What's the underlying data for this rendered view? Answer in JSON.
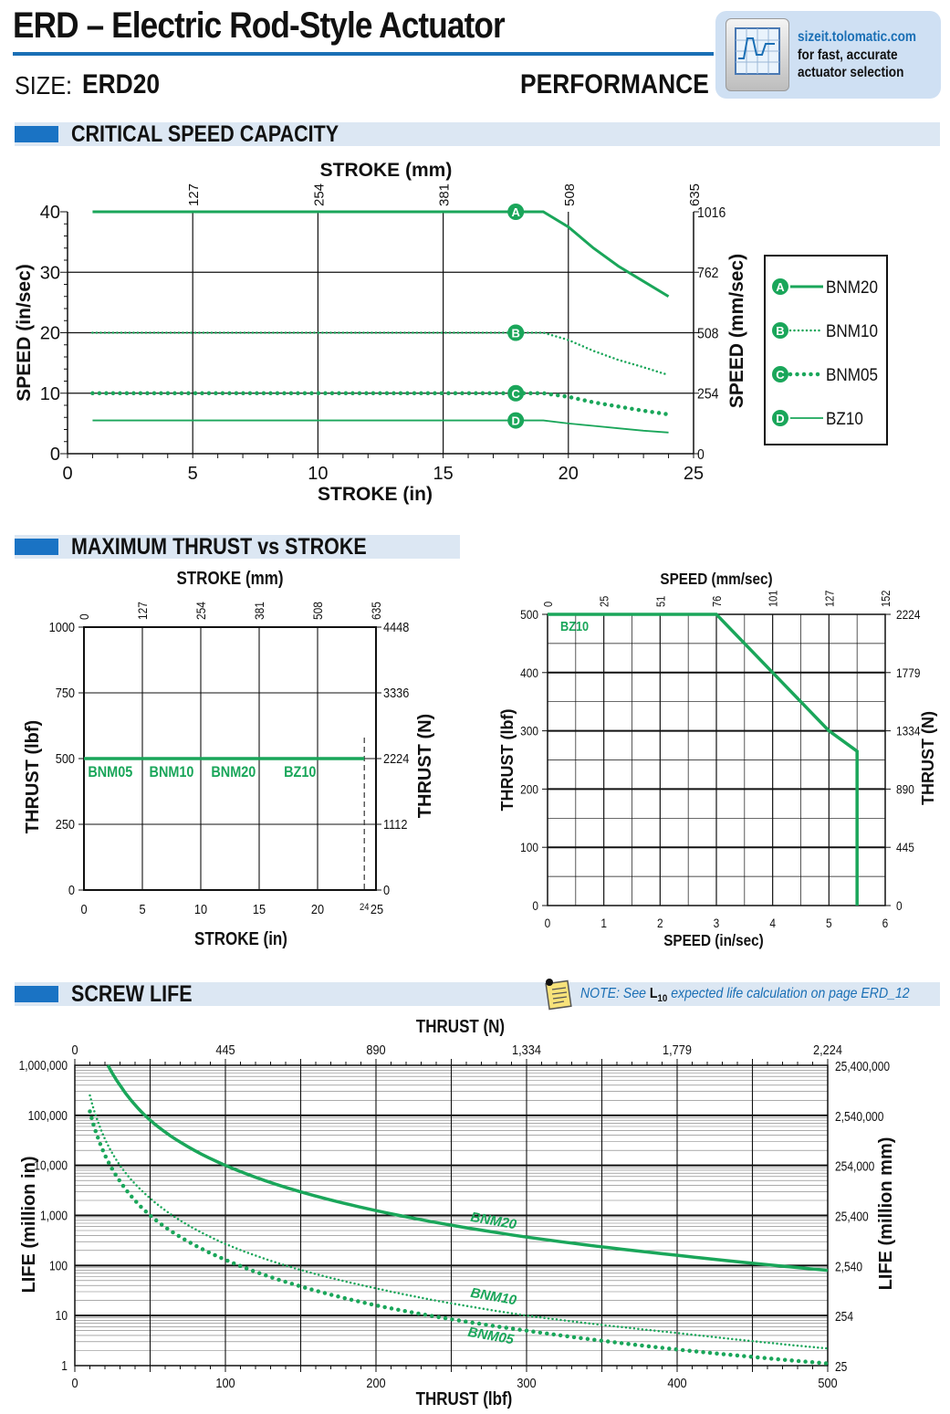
{
  "header": {
    "title": "ERD – Electric Rod-Style Actuator",
    "size_label": "SIZE:",
    "size_value": "ERD20",
    "section": "PERFORMANCE",
    "promo": {
      "url": "sizeit.tolomatic.com",
      "line1": "for fast, accurate",
      "line2": "actuator selection",
      "icon": "sizing-software-icon"
    }
  },
  "sections": {
    "critical": "CRITICAL SPEED CAPACITY",
    "thrust": "MAXIMUM THRUST vs STROKE",
    "life": "SCREW LIFE",
    "life_note_prefix": "NOTE: See ",
    "life_note_bold": "L",
    "life_note_sub": "10",
    "life_note_suffix": " expected life calculation on page ERD_12",
    "note_icon": "note-pad-icon"
  },
  "colors": {
    "accent": "#1a73c4",
    "series": "#1aa65a",
    "section_bg": "#dce7f3"
  },
  "chart_data": [
    {
      "id": "critical",
      "type": "line",
      "title": "",
      "xlabel": "STROKE (in)",
      "xlabel_top": "STROKE (mm)",
      "ylabel": "SPEED (in/sec)",
      "ylabel_right": "SPEED (mm/sec)",
      "xlim": [
        0,
        25
      ],
      "ylim": [
        0,
        40
      ],
      "x_ticks": [
        "0",
        "5",
        "10",
        "15",
        "20",
        "25"
      ],
      "x_top_ticks": [
        "127",
        "254",
        "381",
        "508",
        "635"
      ],
      "y_ticks": [
        "0",
        "10",
        "20",
        "30",
        "40"
      ],
      "y_right_ticks": [
        "0",
        "254",
        "508",
        "762",
        "1016"
      ],
      "grid": true,
      "legend": "right",
      "series": [
        {
          "name": "BNM20",
          "marker": "A",
          "style": "solid",
          "x": [
            1,
            19,
            20,
            21,
            22,
            23,
            24
          ],
          "y": [
            40,
            40,
            37.5,
            34,
            31,
            28.5,
            26
          ]
        },
        {
          "name": "BNM10",
          "marker": "B",
          "style": "dotted",
          "x": [
            1,
            19,
            20,
            21,
            22,
            23,
            24
          ],
          "y": [
            20,
            20,
            18.8,
            17,
            15.5,
            14.3,
            13
          ]
        },
        {
          "name": "BNM05",
          "marker": "C",
          "style": "dots",
          "x": [
            1,
            19,
            20,
            21,
            22,
            23,
            24
          ],
          "y": [
            10,
            10,
            9.4,
            8.5,
            7.8,
            7.1,
            6.5
          ]
        },
        {
          "name": "BZ10",
          "marker": "D",
          "style": "thin",
          "x": [
            1,
            19,
            20,
            21,
            22,
            23,
            24
          ],
          "y": [
            5.5,
            5.5,
            5,
            4.6,
            4.2,
            3.8,
            3.5
          ]
        }
      ]
    },
    {
      "id": "thrust_stroke",
      "type": "line",
      "title": "",
      "xlabel": "STROKE (in)",
      "xlabel_top": "STROKE (mm)",
      "ylabel": "THRUST (lbf)",
      "ylabel_right": "THRUST (N)",
      "xlim": [
        0,
        25
      ],
      "ylim": [
        0,
        1000
      ],
      "x_ticks": [
        "0",
        "5",
        "10",
        "15",
        "20",
        "25"
      ],
      "x_top_ticks": [
        "0",
        "127",
        "254",
        "381",
        "508",
        "635"
      ],
      "y_ticks": [
        "0",
        "250",
        "500",
        "750",
        "1000"
      ],
      "y_right_ticks": [
        "0",
        "1112",
        "2224",
        "3336",
        "4448"
      ],
      "max_stroke_label": "24",
      "max_stroke": 24,
      "grid": true,
      "series": [
        {
          "name": "",
          "x": [
            0,
            24
          ],
          "y": [
            500,
            500
          ]
        }
      ],
      "annotations": [
        "BNM05",
        "BNM10",
        "BNM20",
        "BZ10"
      ]
    },
    {
      "id": "thrust_speed",
      "type": "line",
      "title": "",
      "xlabel": "SPEED (in/sec)",
      "xlabel_top": "SPEED (mm/sec)",
      "ylabel": "THRUST (lbf)",
      "ylabel_right": "THRUST (N)",
      "xlim": [
        0,
        6
      ],
      "ylim": [
        0,
        500
      ],
      "x_ticks": [
        "0",
        "1",
        "2",
        "3",
        "4",
        "5",
        "6"
      ],
      "x_top_ticks": [
        "0",
        "25",
        "51",
        "76",
        "101",
        "127",
        "152"
      ],
      "y_ticks": [
        "0",
        "100",
        "200",
        "300",
        "400",
        "500"
      ],
      "y_right_ticks": [
        "0",
        "445",
        "890",
        "1334",
        "1779",
        "2224"
      ],
      "grid": true,
      "series": [
        {
          "name": "BZ10",
          "x": [
            0,
            3,
            4,
            5,
            5.5,
            5.5
          ],
          "y": [
            500,
            500,
            400,
            300,
            265,
            0
          ]
        }
      ]
    },
    {
      "id": "screw_life",
      "type": "line",
      "title": "",
      "xlabel": "THRUST (lbf)",
      "xlabel_top": "THRUST (N)",
      "ylabel": "LIFE (million in)",
      "ylabel_right": "LIFE (million mm)",
      "xlim": [
        0,
        500
      ],
      "ylim": [
        1,
        1000000
      ],
      "y_scale": "log",
      "x_ticks": [
        "0",
        "100",
        "200",
        "300",
        "400",
        "500"
      ],
      "x_top_ticks": [
        "0",
        "445",
        "890",
        "1,334",
        "1,779",
        "2,224"
      ],
      "y_ticks": [
        "1",
        "10",
        "100",
        "1,000",
        "10,000",
        "100,000",
        "1,000,000"
      ],
      "y_right_ticks": [
        "25",
        "254",
        "2,540",
        "25,400",
        "254,000",
        "2,540,000",
        "25,400,000"
      ],
      "grid": true,
      "series": [
        {
          "name": "BNM20",
          "style": "solid",
          "x": [
            22,
            30,
            50,
            100,
            200,
            300,
            400,
            500
          ],
          "y": [
            1000000,
            400000,
            80000,
            10000,
            1250,
            370,
            160,
            80
          ]
        },
        {
          "name": "BNM10",
          "style": "dotted",
          "x": [
            10,
            15,
            30,
            50,
            100,
            200,
            300,
            400,
            500
          ],
          "y": [
            250000,
            80000,
            10000,
            2200,
            270,
            35,
            10,
            4.5,
            2.2
          ]
        },
        {
          "name": "BNM05",
          "style": "dots",
          "x": [
            10,
            15,
            30,
            50,
            100,
            200,
            300,
            400,
            500
          ],
          "y": [
            120000,
            38000,
            4800,
            1000,
            130,
            16,
            5,
            2.1,
            1.1
          ]
        }
      ]
    }
  ]
}
